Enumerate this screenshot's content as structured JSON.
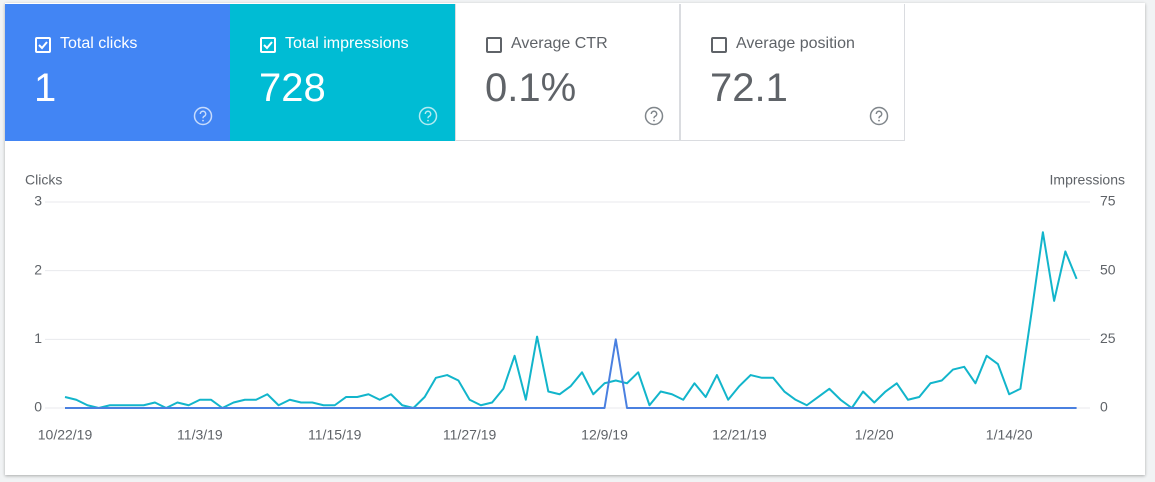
{
  "metrics": [
    {
      "label": "Total clicks",
      "value": "1",
      "checked": true,
      "color": "#4285f4"
    },
    {
      "label": "Total impressions",
      "value": "728",
      "checked": true,
      "color": "#00bcd4"
    },
    {
      "label": "Average CTR",
      "value": "0.1%",
      "checked": false,
      "color": "#ffffff"
    },
    {
      "label": "Average position",
      "value": "72.1",
      "checked": false,
      "color": "#ffffff"
    }
  ],
  "chart_data": {
    "type": "line",
    "ylabel": "Clicks",
    "y2label": "Impressions",
    "categories": [
      "10/22/19",
      null,
      null,
      null,
      null,
      null,
      null,
      null,
      null,
      null,
      null,
      null,
      "11/3/19",
      null,
      null,
      null,
      null,
      null,
      null,
      null,
      null,
      null,
      null,
      null,
      "11/15/19",
      null,
      null,
      null,
      null,
      null,
      null,
      null,
      null,
      null,
      null,
      null,
      "11/27/19",
      null,
      null,
      null,
      null,
      null,
      null,
      null,
      null,
      null,
      null,
      null,
      "12/9/19",
      null,
      null,
      null,
      null,
      null,
      null,
      null,
      null,
      null,
      null,
      null,
      "12/21/19",
      null,
      null,
      null,
      null,
      null,
      null,
      null,
      null,
      null,
      null,
      null,
      "1/2/20",
      null,
      null,
      null,
      null,
      null,
      null,
      null,
      null,
      null,
      null,
      null,
      "1/14/20",
      null,
      null,
      null,
      null,
      null,
      null
    ],
    "series": [
      {
        "color": "#4a80e0",
        "axis": "y",
        "values": [
          0,
          0,
          0,
          0,
          0,
          0,
          0,
          0,
          0,
          0,
          0,
          0,
          0,
          0,
          0,
          0,
          0,
          0,
          0,
          0,
          0,
          0,
          0,
          0,
          0,
          0,
          0,
          0,
          0,
          0,
          0,
          0,
          0,
          0,
          0,
          0,
          0,
          0,
          0,
          0,
          0,
          0,
          0,
          0,
          0,
          0,
          0,
          0,
          0,
          1,
          0,
          0,
          0,
          0,
          0,
          0,
          0,
          0,
          0,
          0,
          0,
          0,
          0,
          0,
          0,
          0,
          0,
          0,
          0,
          0,
          0,
          0,
          0,
          0,
          0,
          0,
          0,
          0,
          0,
          0,
          0,
          0,
          0,
          0,
          0,
          0,
          0,
          0,
          0,
          0,
          0
        ]
      },
      {
        "color": "#12b5cb",
        "axis": "y2",
        "values": [
          4,
          3,
          1,
          0,
          1,
          1,
          1,
          1,
          2,
          0,
          2,
          1,
          3,
          3,
          0,
          2,
          3,
          3,
          5,
          1,
          3,
          2,
          2,
          1,
          1,
          4,
          4,
          5,
          3,
          5,
          1,
          0,
          4,
          11,
          12,
          10,
          3,
          1,
          2,
          7,
          19,
          3,
          26,
          6,
          5,
          8,
          13,
          5,
          9,
          10,
          9,
          13,
          1,
          6,
          5,
          3,
          9,
          4,
          12,
          3,
          8,
          12,
          11,
          11,
          6,
          3,
          1,
          4,
          7,
          3,
          0,
          6,
          2,
          6,
          9,
          3,
          4,
          9,
          10,
          14,
          15,
          9,
          19,
          16,
          5,
          7,
          35,
          64,
          39,
          57,
          47
        ]
      }
    ],
    "ylim": [
      0,
      3
    ],
    "yticks": [
      0,
      1,
      2,
      3
    ],
    "y2lim": [
      0,
      75
    ],
    "y2ticks": [
      0,
      25,
      50,
      75
    ],
    "grid": true
  }
}
